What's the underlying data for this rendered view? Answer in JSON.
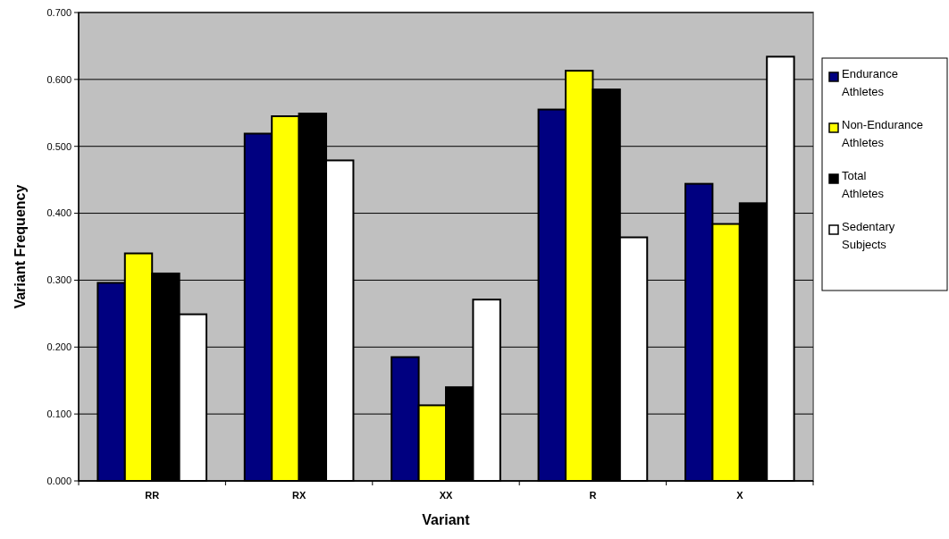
{
  "chart_data": {
    "type": "bar",
    "xlabel": "Variant",
    "ylabel": "Variant Frequency",
    "categories": [
      "RR",
      "RX",
      "XX",
      "R",
      "X"
    ],
    "series": [
      {
        "name": "Endurance Athletes",
        "color": "#000080",
        "values": [
          0.296,
          0.519,
          0.185,
          0.555,
          0.444
        ]
      },
      {
        "name": "Non-Endurance Athletes",
        "color": "#ffff00",
        "values": [
          0.34,
          0.545,
          0.113,
          0.613,
          0.384
        ]
      },
      {
        "name": "Total Athletes",
        "color": "#000000",
        "values": [
          0.31,
          0.549,
          0.14,
          0.585,
          0.415
        ]
      },
      {
        "name": "Sedentary Subjects",
        "color": "#ffffff",
        "values": [
          0.249,
          0.479,
          0.271,
          0.364,
          0.634
        ]
      }
    ],
    "ylim": [
      0,
      0.7
    ],
    "yticks": [
      {
        "value": 0,
        "label": "0.000"
      },
      {
        "value": 0.1,
        "label": "0.100"
      },
      {
        "value": 0.2,
        "label": "0.200"
      },
      {
        "value": 0.3,
        "label": "0.300"
      },
      {
        "value": 0.4,
        "label": "0.400"
      },
      {
        "value": 0.5,
        "label": "0.500"
      },
      {
        "value": 0.6,
        "label": "0.600"
      },
      {
        "value": 0.7,
        "label": "0.700"
      }
    ],
    "grid": "y",
    "legend": "right"
  }
}
